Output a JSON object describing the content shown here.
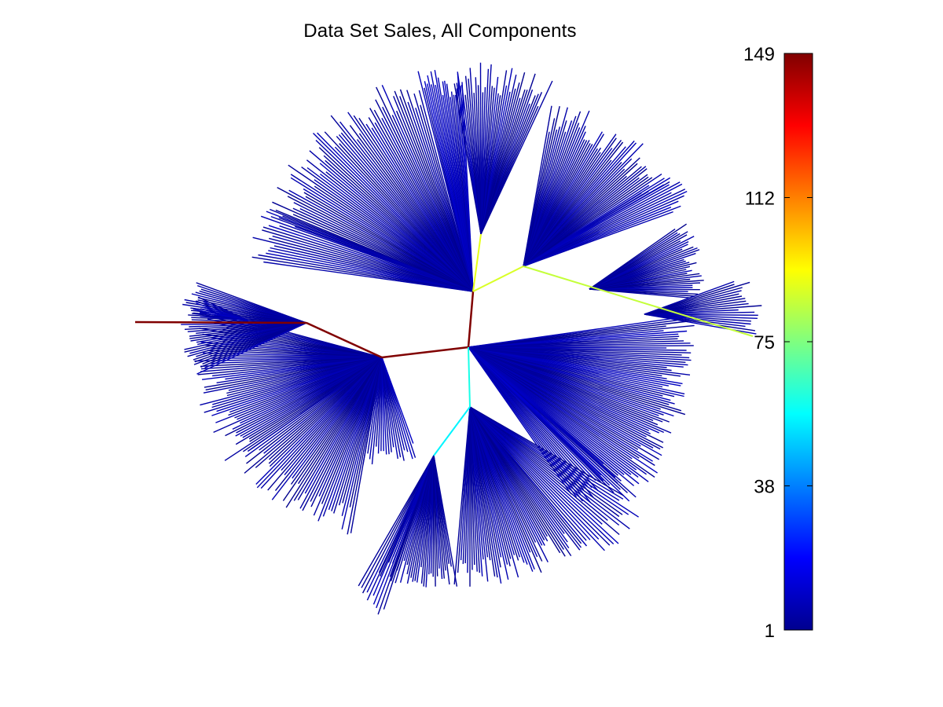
{
  "chart_data": {
    "type": "tree",
    "title": "Data Set Sales, All Components",
    "layout": "radial",
    "colormap": "jet",
    "colorbar": {
      "position": "right",
      "range": [
        1,
        149
      ],
      "ticks": [
        "1",
        "38",
        "75",
        "112",
        "149"
      ],
      "tick_values": [
        1,
        38,
        75,
        112,
        149
      ]
    },
    "edges": [
      {
        "from": "root",
        "to": "hub_top",
        "value": 149
      },
      {
        "from": "root",
        "to": "hub_left",
        "value": 149
      },
      {
        "from": "hub_left",
        "to": "hub_far_left",
        "value": 149
      },
      {
        "from": "hub_far_left",
        "to": "leaf_far_left",
        "value": 149
      },
      {
        "from": "hub_top",
        "to": "hub_top_center",
        "value": 90
      },
      {
        "from": "hub_top",
        "to": "hub_top_right",
        "value": 88
      },
      {
        "from": "hub_top_right",
        "to": "leaf_right",
        "value": 85
      },
      {
        "from": "root",
        "to": "hub_bottom",
        "value": 60
      },
      {
        "from": "hub_bottom",
        "to": "hub_bottom_left",
        "value": 55
      }
    ]
  },
  "colors": {
    "background": "#ffffff",
    "text": "#000000",
    "axis": "#000000"
  }
}
